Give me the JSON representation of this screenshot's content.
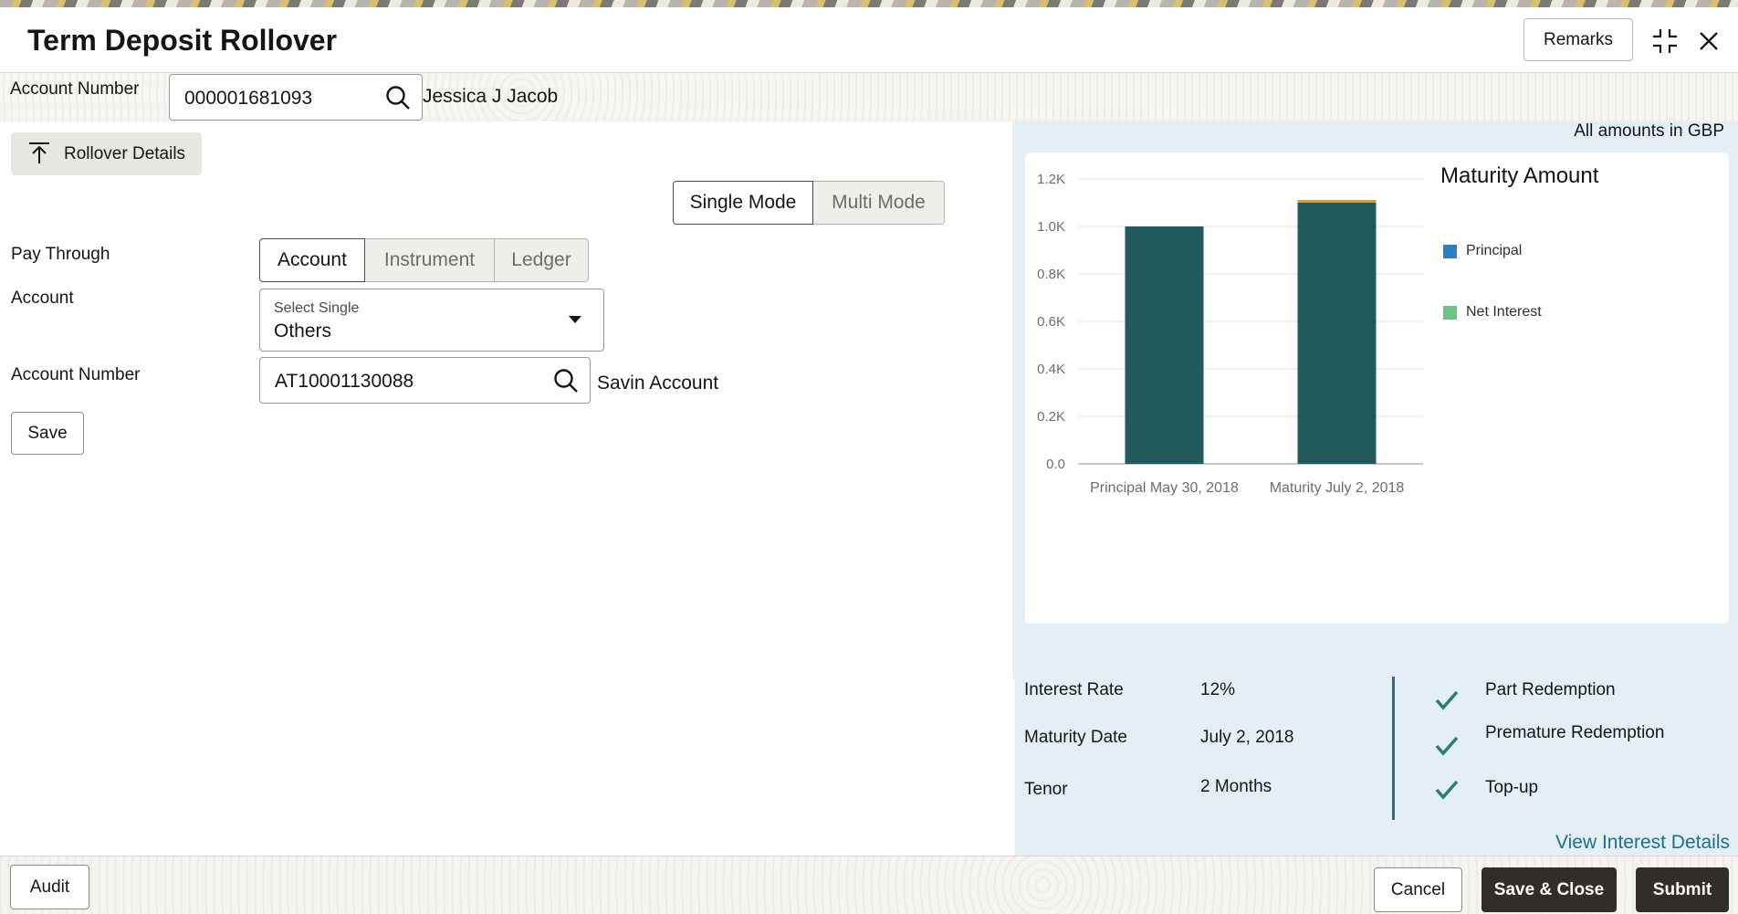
{
  "header": {
    "title": "Term Deposit Rollover",
    "remarks_label": "Remarks"
  },
  "account_bar": {
    "label": "Account Number",
    "value": "000001681093",
    "holder_name": "Jessica J Jacob"
  },
  "rollover": {
    "section_label": "Rollover Details",
    "mode_options": [
      "Single Mode",
      "Multi Mode"
    ],
    "selected_mode": "Single Mode",
    "pay_through_label": "Pay Through",
    "pay_through_options": [
      "Account",
      "Instrument",
      "Ledger"
    ],
    "selected_pay_through": "Account",
    "account_label": "Account",
    "account_select_placeholder": "Select Single",
    "account_select_value": "Others",
    "account_number_label": "Account Number",
    "account_number_value": "AT10001130088",
    "account_name": "Savin Account",
    "save_label": "Save"
  },
  "summary": {
    "amounts_note": "All amounts in GBP",
    "interest_rate_label": "Interest Rate",
    "interest_rate_value": "12%",
    "maturity_date_label": "Maturity Date",
    "maturity_date_value": "July 2, 2018",
    "tenor_label": "Tenor",
    "tenor_value": "2 Months",
    "features": [
      "Part Redemption",
      "Premature Redemption",
      "Top-up"
    ],
    "view_interest_label": "View Interest Details"
  },
  "chart_data": {
    "type": "bar",
    "title": "Maturity Amount",
    "categories": [
      "Principal May 30, 2018",
      "Maturity July 2, 2018"
    ],
    "series": [
      {
        "name": "Principal",
        "values": [
          1000,
          1100
        ],
        "color": "#215b5e"
      },
      {
        "name": "Net Interest",
        "values": [
          0,
          11
        ],
        "color": "#e3963a"
      }
    ],
    "legend": [
      {
        "name": "Principal",
        "color": "#2e7fc0"
      },
      {
        "name": "Net Interest",
        "color": "#6dc487"
      }
    ],
    "ylim": [
      0,
      1200
    ],
    "yticks": [
      "0.0",
      "0.2K",
      "0.4K",
      "0.6K",
      "0.8K",
      "1.0K",
      "1.2K"
    ],
    "grid": true,
    "legend_position": "right"
  },
  "footer": {
    "audit_label": "Audit",
    "cancel_label": "Cancel",
    "save_close_label": "Save & Close",
    "submit_label": "Submit"
  }
}
